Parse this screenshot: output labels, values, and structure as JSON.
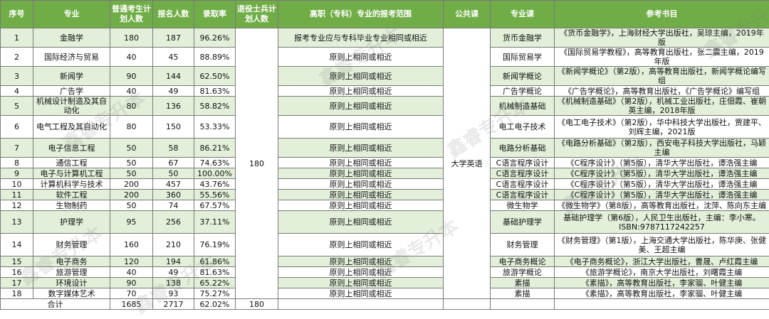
{
  "headers": [
    "序号",
    "专业",
    "普通考生计划人数",
    "报名人数",
    "录取率",
    "退役士兵计划人数",
    "高职（专科）专业的报考范围",
    "公共课",
    "专业课",
    "参考书目"
  ],
  "soldier_plan": "180",
  "public_course": "大学英语",
  "rows": [
    {
      "no": "1",
      "major": "金融学",
      "plan": "180",
      "applicants": "187",
      "rate": "96.26%",
      "scope": "报考专业应与专科毕业专业相同或相近",
      "course": "货币金融学",
      "books": "《货币金融学》，上海财经大学出版社，吴琼主编，2019年版"
    },
    {
      "no": "2",
      "major": "国际经济与贸易",
      "plan": "40",
      "applicants": "45",
      "rate": "88.89%",
      "scope": "原则上相同或相近",
      "course": "国际贸易学",
      "books": "《国际贸易学教程》，高等教育出版社，张二震主编，2019年版"
    },
    {
      "no": "3",
      "major": "新闻学",
      "plan": "90",
      "applicants": "144",
      "rate": "62.50%",
      "scope": "原则上相同或相近",
      "course": "新闻学概论",
      "books": "《新闻学概论》（第2版），高等教育出版社，新闻学概论编写组"
    },
    {
      "no": "4",
      "major": "广告学",
      "plan": "40",
      "applicants": "49",
      "rate": "81.63%",
      "scope": "原则上相同或相近",
      "course": "广告学概论",
      "books": "《广告学概论》，高等教育出版社，《广告学概论》编写组"
    },
    {
      "no": "5",
      "major": "机械设计制造及其自动化",
      "plan": "80",
      "applicants": "136",
      "rate": "58.82%",
      "scope": "原则上相同或相近",
      "course": "机械制造基础",
      "books": "《机械制造基础》（第2版），机械工业出版社，庄佃霞、崔朝英主编，2018年版"
    },
    {
      "no": "6",
      "major": "电气工程及其自动化",
      "plan": "80",
      "applicants": "150",
      "rate": "53.33%",
      "scope": "原则上相同或相近",
      "course": "电工电子技术",
      "books": "《电工电子技术》（第2版），华中科技大学出版社，贾建平、刘辉主编，2021版"
    },
    {
      "no": "7",
      "major": "电子信息工程",
      "plan": "50",
      "applicants": "58",
      "rate": "86.21%",
      "scope": "原则上相同或相近",
      "course": "电路分析基础",
      "books": "《电路分析基础》（第2版），西安电子科技大学出版社，马颖主编"
    },
    {
      "no": "8",
      "major": "通信工程",
      "plan": "50",
      "applicants": "67",
      "rate": "74.63%",
      "scope": "原则上相同或相近",
      "course": "C语言程序设计",
      "books": "《C程序设计》（第5版），清华大学出版社，谭浩强主编"
    },
    {
      "no": "9",
      "major": "电子与计算机工程",
      "plan": "50",
      "applicants": "50",
      "rate": "100.00%",
      "scope": "原则上相同或相近",
      "course": "C语言程序设计",
      "books": "《C程序设计》（第5版），清华大学出版社，谭浩强主编"
    },
    {
      "no": "10",
      "major": "计算机科学与技术",
      "plan": "200",
      "applicants": "457",
      "rate": "43.76%",
      "scope": "原则上相同或相近",
      "course": "C语言程序设计",
      "books": "《C程序设计》（第5版），清华大学出版社，谭浩强主编"
    },
    {
      "no": "11",
      "major": "软件工程",
      "plan": "200",
      "applicants": "360",
      "rate": "55.56%",
      "scope": "原则上相同或相近",
      "course": "C语言程序设计",
      "books": "《C程序设计》（第5版），清华大学出版社，谭浩强主编"
    },
    {
      "no": "12",
      "major": "生物制药",
      "plan": "50",
      "applicants": "74",
      "rate": "67.57%",
      "scope": "原则上相同或相近",
      "course": "微生物学",
      "books": "《微生物学》（第8版），高等教育出版社，沈萍、陈向东主编"
    },
    {
      "no": "13",
      "major": "护理学",
      "plan": "95",
      "applicants": "256",
      "rate": "37.11%",
      "scope": "原则上相同或相近",
      "course": "基础护理学",
      "books": "基础护理学（第6版），人民卫生出版社，主编：李小寒。ISBN:9787117242257"
    },
    {
      "no": "14",
      "major": "财务管理",
      "plan": "160",
      "applicants": "210",
      "rate": "76.19%",
      "scope": "原则上相同或相近",
      "course": "财务管理",
      "books": "《财务管理》（第1版），上海交通大学出版社，陈华庚、张健美、王超主编"
    },
    {
      "no": "15",
      "major": "电子商务",
      "plan": "120",
      "applicants": "194",
      "rate": "61.86%",
      "scope": "原则上相同或相近",
      "course": "电子商务概论",
      "books": "《电子商务概论》，浙江大学出版社，曹晟、卢红霞主编"
    },
    {
      "no": "16",
      "major": "旅游管理",
      "plan": "40",
      "applicants": "49",
      "rate": "81.63%",
      "scope": "原则上相同或相近",
      "course": "旅游学概论",
      "books": "《旅游学概论》，南京大学出版社，刘曙霞主编"
    },
    {
      "no": "17",
      "major": "环境设计",
      "plan": "90",
      "applicants": "138",
      "rate": "65.22%",
      "scope": "原则上相同或相近",
      "course": "素描",
      "books": "《素描》，高等教育出版社，李家骝、叶健主编"
    },
    {
      "no": "18",
      "major": "数字媒体艺术",
      "plan": "70",
      "applicants": "93",
      "rate": "75.27%",
      "scope": "原则上相同或相近",
      "course": "素描",
      "books": "《素描》，高等教育出版社，李家骝、叶健主编"
    }
  ],
  "total": {
    "label": "合计",
    "plan": "1685",
    "applicants": "2717",
    "rate": "62.02%",
    "soldier": "180"
  },
  "watermark": "鑫睿专升本"
}
